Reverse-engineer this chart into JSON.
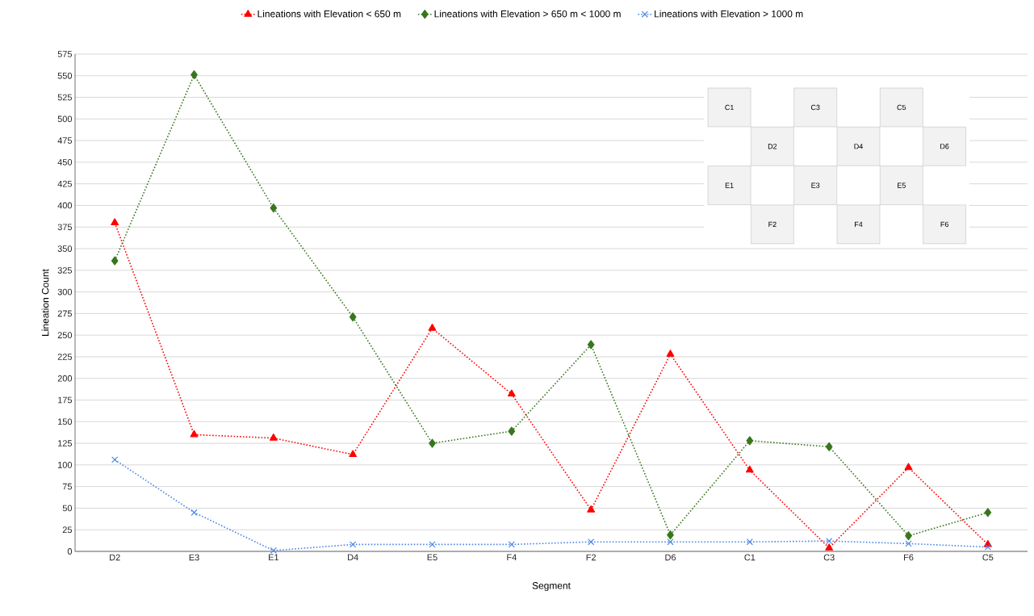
{
  "chart_data": {
    "type": "line",
    "xlabel": "Segment",
    "ylabel": "Lineation Count",
    "categories": [
      "D2",
      "E3",
      "E1",
      "D4",
      "E5",
      "F4",
      "F2",
      "D6",
      "C1",
      "C3",
      "F6",
      "C5"
    ],
    "series": [
      {
        "name": "Lineations with Elevation < 650 m",
        "color": "#ff0000",
        "marker": "triangle",
        "values": [
          380,
          135,
          131,
          112,
          258,
          182,
          48,
          228,
          94,
          4,
          97,
          8
        ]
      },
      {
        "name": "Lineations with Elevation > 650 m < 1000 m",
        "color": "#38761d",
        "marker": "diamond",
        "values": [
          336,
          551,
          397,
          271,
          125,
          139,
          239,
          19,
          128,
          121,
          18,
          45
        ]
      },
      {
        "name": "Lineations with Elevation > 1000 m",
        "color": "#4a86e8",
        "marker": "cross",
        "values": [
          106,
          45,
          1,
          8,
          8,
          8,
          11,
          11,
          11,
          12,
          9,
          5
        ]
      }
    ],
    "ylim": [
      0,
      575
    ],
    "yticks": [
      0,
      25,
      50,
      75,
      100,
      125,
      150,
      175,
      200,
      225,
      250,
      275,
      300,
      325,
      350,
      375,
      400,
      425,
      450,
      475,
      500,
      525,
      550,
      575
    ],
    "grid": "y",
    "legend": "top",
    "line_style": "dotted",
    "annotations": [
      "C1",
      "C3",
      "C5",
      "D2",
      "D4",
      "D6",
      "E1",
      "E3",
      "E5",
      "F2",
      "F4",
      "F6"
    ]
  }
}
